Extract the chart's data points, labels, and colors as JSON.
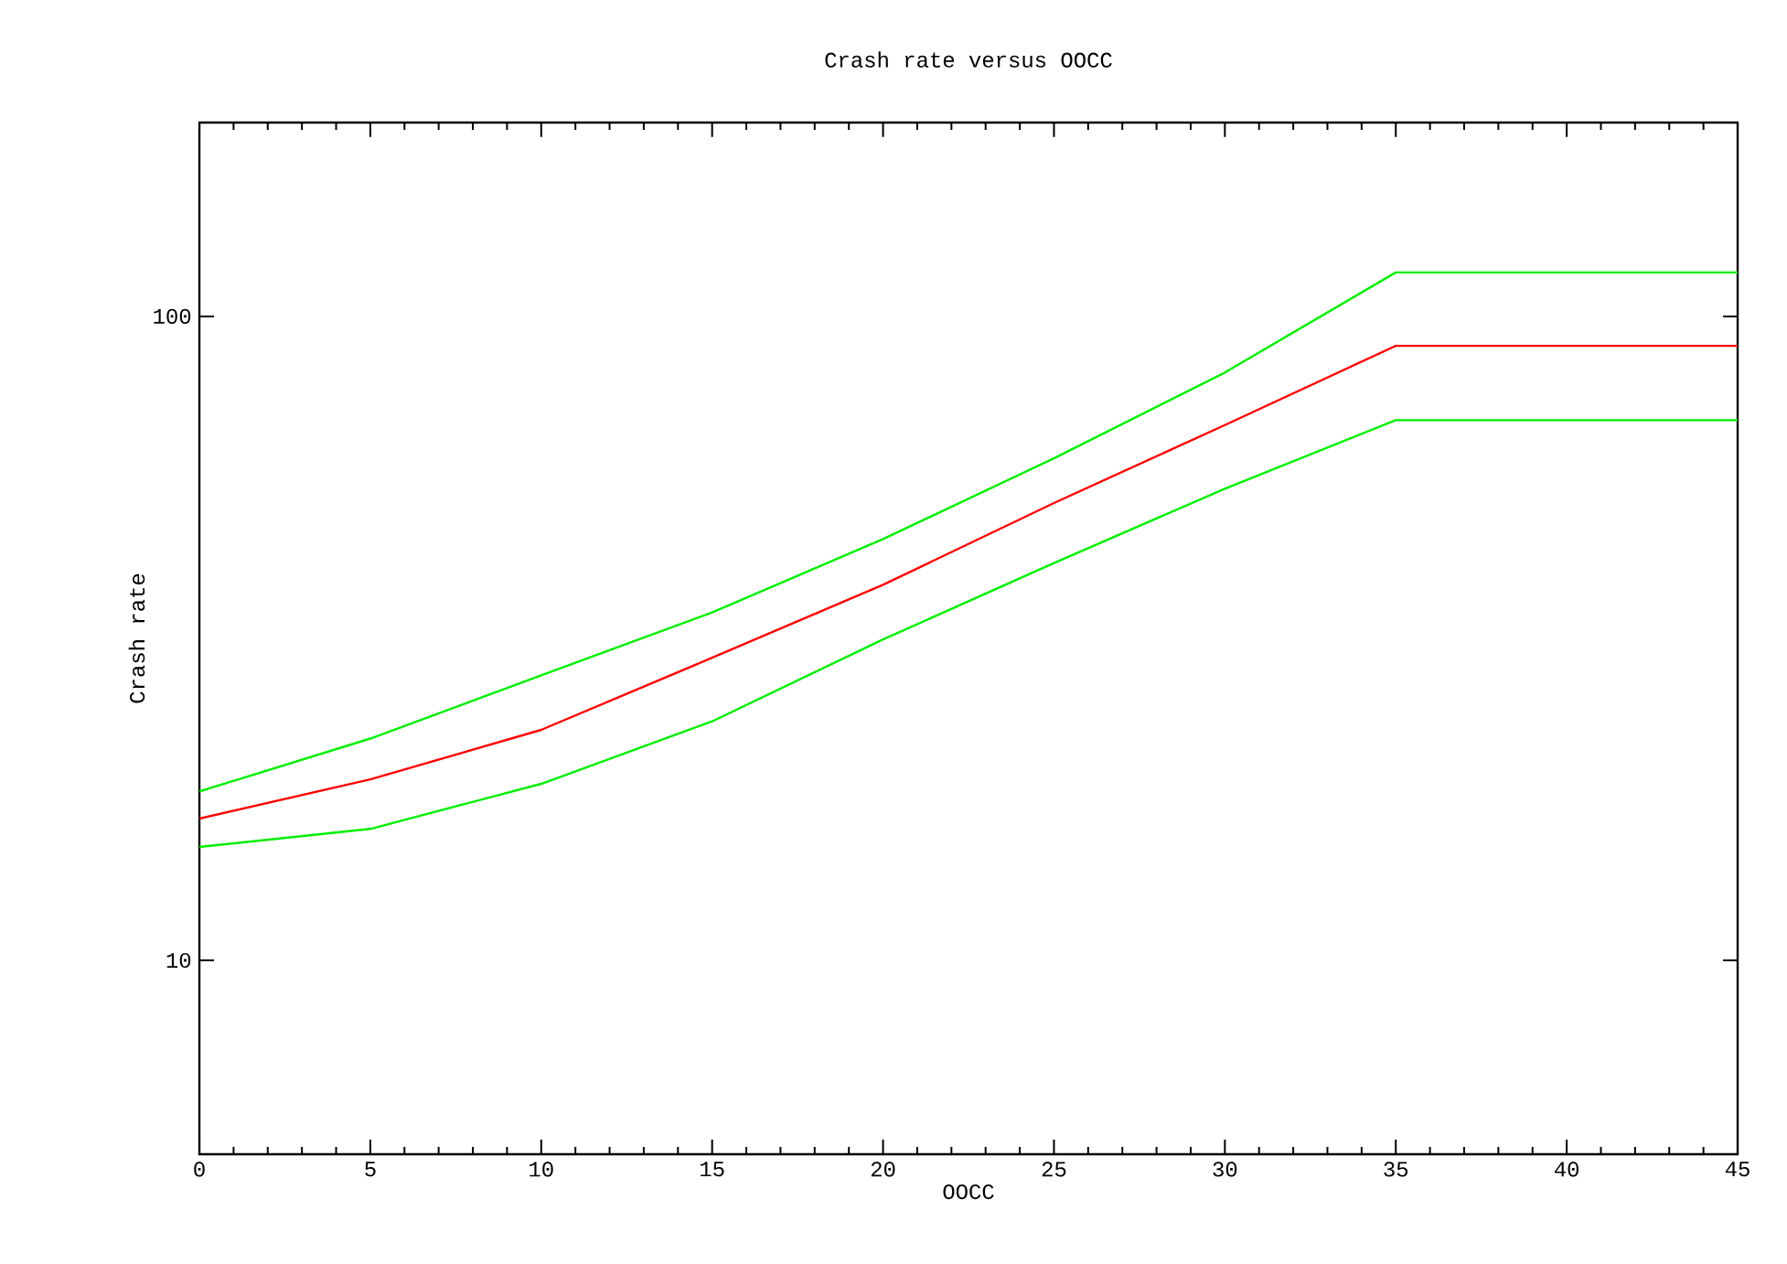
{
  "chart_data": {
    "type": "line",
    "title": "Crash rate versus OOCC",
    "xlabel": "OOCC",
    "ylabel": "Crash rate",
    "log": "y",
    "xlim": [
      0,
      45
    ],
    "ylim": [
      5,
      200
    ],
    "xticks": [
      0,
      5,
      10,
      15,
      20,
      25,
      30,
      35,
      40,
      45
    ],
    "yticks": [
      10,
      100
    ],
    "grid": false,
    "marker": "none",
    "line_style": "solid",
    "series": [
      {
        "color": "#00ee00",
        "x": [
          0,
          5,
          10,
          15,
          20,
          25,
          30,
          35,
          45
        ],
        "values": [
          18.3,
          22.1,
          27.7,
          34.7,
          45.1,
          60.2,
          81.8,
          117,
          117
        ]
      },
      {
        "color": "#ff0000",
        "x": [
          0,
          5,
          10,
          15,
          20,
          25,
          30,
          35,
          45
        ],
        "values": [
          16.6,
          19.1,
          22.8,
          29.5,
          38.3,
          51.3,
          67.8,
          90,
          90
        ]
      },
      {
        "color": "#00ee00",
        "x": [
          0,
          5,
          10,
          15,
          20,
          25,
          30,
          35,
          45
        ],
        "values": [
          15.0,
          16.0,
          18.8,
          23.5,
          31.5,
          41.4,
          54.0,
          69,
          69
        ]
      }
    ]
  }
}
